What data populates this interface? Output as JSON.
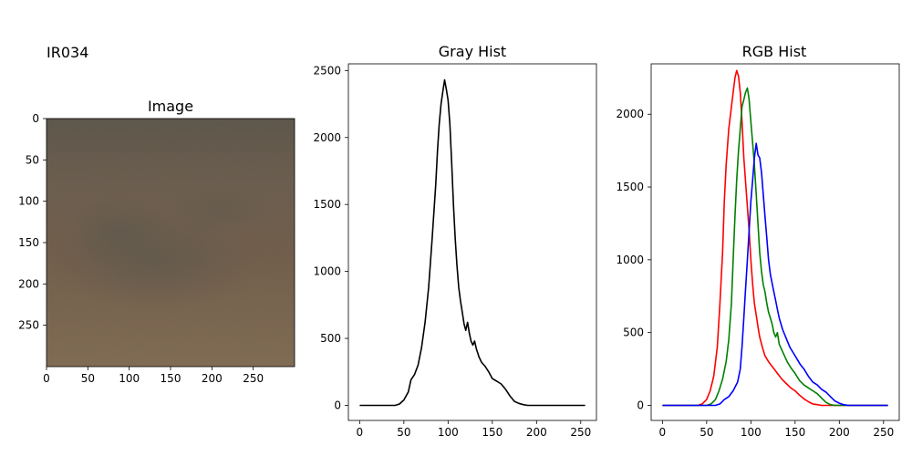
{
  "figure": {
    "title": "IR034"
  },
  "chart_data": [
    {
      "type": "image",
      "title": "Image",
      "xticks": [
        0,
        50,
        100,
        150,
        200,
        250
      ],
      "yticks": [
        0,
        50,
        100,
        150,
        200,
        250
      ],
      "xlim": [
        0,
        300
      ],
      "ylim": [
        300,
        0
      ],
      "colors": {
        "top": "#434a4a",
        "upper": "#5f5a54",
        "middle": "#6e5b4b",
        "blob": "#4a5150",
        "bottom": "#8f7a5e"
      }
    },
    {
      "type": "line",
      "title": "Gray Hist",
      "xlim": [
        0,
        255
      ],
      "ylim": [
        0,
        2500
      ],
      "xticks": [
        0,
        50,
        100,
        150,
        200,
        250
      ],
      "yticks": [
        0,
        500,
        1000,
        1500,
        2000,
        2500
      ],
      "series": [
        {
          "color": "#000000",
          "points": [
            [
              0,
              0
            ],
            [
              40,
              0
            ],
            [
              45,
              10
            ],
            [
              50,
              40
            ],
            [
              55,
              100
            ],
            [
              58,
              190
            ],
            [
              62,
              230
            ],
            [
              66,
              300
            ],
            [
              70,
              430
            ],
            [
              74,
              620
            ],
            [
              78,
              880
            ],
            [
              82,
              1250
            ],
            [
              86,
              1650
            ],
            [
              88,
              1900
            ],
            [
              90,
              2100
            ],
            [
              92,
              2250
            ],
            [
              94,
              2340
            ],
            [
              96,
              2430
            ],
            [
              98,
              2360
            ],
            [
              100,
              2280
            ],
            [
              102,
              2100
            ],
            [
              104,
              1820
            ],
            [
              106,
              1500
            ],
            [
              108,
              1250
            ],
            [
              110,
              1050
            ],
            [
              112,
              880
            ],
            [
              114,
              780
            ],
            [
              116,
              700
            ],
            [
              118,
              610
            ],
            [
              120,
              560
            ],
            [
              122,
              620
            ],
            [
              124,
              540
            ],
            [
              126,
              480
            ],
            [
              128,
              450
            ],
            [
              130,
              480
            ],
            [
              132,
              420
            ],
            [
              135,
              360
            ],
            [
              138,
              320
            ],
            [
              142,
              290
            ],
            [
              146,
              250
            ],
            [
              150,
              200
            ],
            [
              155,
              180
            ],
            [
              160,
              160
            ],
            [
              165,
              120
            ],
            [
              170,
              70
            ],
            [
              175,
              30
            ],
            [
              180,
              15
            ],
            [
              185,
              5
            ],
            [
              190,
              0
            ],
            [
              200,
              0
            ],
            [
              255,
              0
            ]
          ]
        }
      ]
    },
    {
      "type": "line",
      "title": "RGB Hist",
      "xlim": [
        0,
        255
      ],
      "ylim": [
        0,
        2300
      ],
      "xticks": [
        0,
        50,
        100,
        150,
        200,
        250
      ],
      "yticks": [
        0,
        500,
        1000,
        1500,
        2000
      ],
      "series": [
        {
          "color": "#ff0000",
          "points": [
            [
              0,
              0
            ],
            [
              40,
              0
            ],
            [
              45,
              10
            ],
            [
              50,
              40
            ],
            [
              54,
              100
            ],
            [
              58,
              200
            ],
            [
              62,
              400
            ],
            [
              65,
              700
            ],
            [
              68,
              1050
            ],
            [
              70,
              1400
            ],
            [
              72,
              1650
            ],
            [
              75,
              1900
            ],
            [
              78,
              2050
            ],
            [
              80,
              2150
            ],
            [
              82,
              2250
            ],
            [
              84,
              2300
            ],
            [
              86,
              2260
            ],
            [
              88,
              2150
            ],
            [
              90,
              1950
            ],
            [
              92,
              1700
            ],
            [
              95,
              1450
            ],
            [
              98,
              1200
            ],
            [
              100,
              1000
            ],
            [
              102,
              830
            ],
            [
              104,
              700
            ],
            [
              106,
              620
            ],
            [
              108,
              540
            ],
            [
              110,
              470
            ],
            [
              113,
              400
            ],
            [
              116,
              340
            ],
            [
              120,
              300
            ],
            [
              125,
              260
            ],
            [
              130,
              220
            ],
            [
              135,
              180
            ],
            [
              140,
              150
            ],
            [
              145,
              120
            ],
            [
              150,
              100
            ],
            [
              155,
              70
            ],
            [
              160,
              45
            ],
            [
              165,
              25
            ],
            [
              170,
              10
            ],
            [
              175,
              5
            ],
            [
              180,
              0
            ],
            [
              200,
              0
            ],
            [
              255,
              0
            ]
          ]
        },
        {
          "color": "#008000",
          "points": [
            [
              0,
              0
            ],
            [
              50,
              0
            ],
            [
              55,
              10
            ],
            [
              60,
              40
            ],
            [
              64,
              100
            ],
            [
              68,
              180
            ],
            [
              72,
              300
            ],
            [
              75,
              450
            ],
            [
              78,
              700
            ],
            [
              80,
              1000
            ],
            [
              82,
              1300
            ],
            [
              84,
              1550
            ],
            [
              86,
              1750
            ],
            [
              88,
              1900
            ],
            [
              90,
              2050
            ],
            [
              92,
              2100
            ],
            [
              94,
              2150
            ],
            [
              96,
              2180
            ],
            [
              98,
              2100
            ],
            [
              100,
              1950
            ],
            [
              102,
              1800
            ],
            [
              104,
              1650
            ],
            [
              106,
              1450
            ],
            [
              108,
              1250
            ],
            [
              110,
              1050
            ],
            [
              112,
              920
            ],
            [
              114,
              830
            ],
            [
              116,
              780
            ],
            [
              118,
              700
            ],
            [
              120,
              640
            ],
            [
              122,
              600
            ],
            [
              124,
              560
            ],
            [
              126,
              500
            ],
            [
              128,
              470
            ],
            [
              130,
              500
            ],
            [
              132,
              420
            ],
            [
              135,
              380
            ],
            [
              138,
              340
            ],
            [
              141,
              300
            ],
            [
              145,
              260
            ],
            [
              150,
              220
            ],
            [
              155,
              170
            ],
            [
              160,
              140
            ],
            [
              165,
              120
            ],
            [
              170,
              100
            ],
            [
              175,
              80
            ],
            [
              180,
              50
            ],
            [
              185,
              20
            ],
            [
              190,
              5
            ],
            [
              195,
              0
            ],
            [
              200,
              0
            ],
            [
              255,
              0
            ]
          ]
        },
        {
          "color": "#0000ff",
          "points": [
            [
              0,
              0
            ],
            [
              60,
              0
            ],
            [
              65,
              10
            ],
            [
              70,
              40
            ],
            [
              75,
              60
            ],
            [
              80,
              100
            ],
            [
              85,
              160
            ],
            [
              88,
              250
            ],
            [
              90,
              400
            ],
            [
              92,
              600
            ],
            [
              94,
              800
            ],
            [
              96,
              1000
            ],
            [
              98,
              1200
            ],
            [
              100,
              1400
            ],
            [
              102,
              1550
            ],
            [
              104,
              1700
            ],
            [
              106,
              1800
            ],
            [
              108,
              1720
            ],
            [
              110,
              1700
            ],
            [
              112,
              1600
            ],
            [
              114,
              1450
            ],
            [
              116,
              1300
            ],
            [
              118,
              1150
            ],
            [
              120,
              1000
            ],
            [
              122,
              900
            ],
            [
              124,
              840
            ],
            [
              126,
              780
            ],
            [
              128,
              720
            ],
            [
              130,
              660
            ],
            [
              132,
              600
            ],
            [
              134,
              560
            ],
            [
              136,
              520
            ],
            [
              140,
              460
            ],
            [
              144,
              400
            ],
            [
              148,
              360
            ],
            [
              152,
              320
            ],
            [
              156,
              280
            ],
            [
              160,
              250
            ],
            [
              165,
              200
            ],
            [
              170,
              160
            ],
            [
              175,
              140
            ],
            [
              180,
              110
            ],
            [
              185,
              90
            ],
            [
              190,
              60
            ],
            [
              195,
              30
            ],
            [
              200,
              15
            ],
            [
              205,
              5
            ],
            [
              210,
              0
            ],
            [
              255,
              0
            ]
          ]
        }
      ]
    }
  ]
}
